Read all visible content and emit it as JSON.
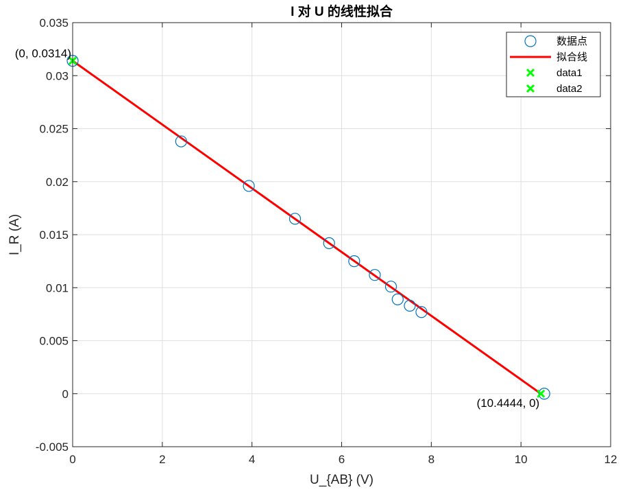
{
  "chart_data": {
    "type": "scatter",
    "title": "I 对 U 的线性拟合",
    "xlabel": "U_{AB} (V)",
    "ylabel": "I_R (A)",
    "xlim": [
      0,
      12
    ],
    "ylim": [
      -0.005,
      0.035
    ],
    "xticks": [
      0,
      2,
      4,
      6,
      8,
      10,
      12
    ],
    "yticks": [
      -0.005,
      0,
      0.005,
      0.01,
      0.015,
      0.02,
      0.025,
      0.03,
      0.035
    ],
    "xtick_labels": [
      "0",
      "2",
      "4",
      "6",
      "8",
      "10",
      "12"
    ],
    "ytick_labels": [
      "-0.005",
      "0",
      "0.005",
      "0.01",
      "0.015",
      "0.02",
      "0.025",
      "0.03",
      "0.035"
    ],
    "grid": true,
    "legend_position": "top-right",
    "series": [
      {
        "name": "数据点",
        "kind": "scatter-circle",
        "color": "#0072BD",
        "x": [
          0,
          2.42,
          3.93,
          4.96,
          5.72,
          6.28,
          6.74,
          7.1,
          7.25,
          7.52,
          7.78,
          10.52
        ],
        "y": [
          0.0314,
          0.0238,
          0.0196,
          0.0165,
          0.0142,
          0.0125,
          0.0112,
          0.0101,
          0.0089,
          0.0083,
          0.0077,
          0
        ]
      },
      {
        "name": "拟合线",
        "kind": "line",
        "color": "#FF0000",
        "x": [
          0,
          10.4444
        ],
        "y": [
          0.0314,
          0
        ]
      },
      {
        "name": "data1",
        "kind": "scatter-x",
        "color": "#00FF00",
        "x": [
          0
        ],
        "y": [
          0.0314
        ]
      },
      {
        "name": "data2",
        "kind": "scatter-x",
        "color": "#00FF00",
        "x": [
          10.4444
        ],
        "y": [
          0
        ]
      }
    ],
    "annotations": [
      {
        "text": "(0, 0.0314)",
        "x": 0,
        "y": 0.0314,
        "anchor": "end"
      },
      {
        "text": "(10.4444, 0)",
        "x": 10.4444,
        "y": 0,
        "anchor": "end"
      }
    ]
  }
}
